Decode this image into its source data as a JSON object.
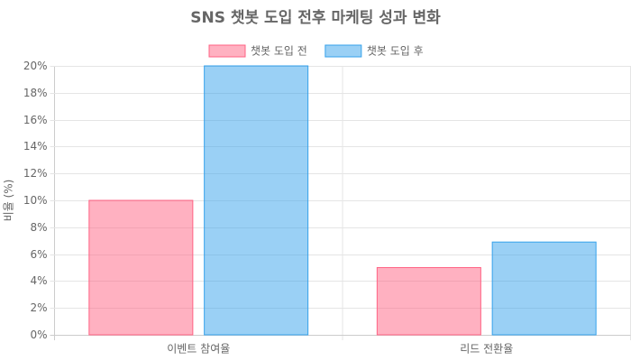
{
  "chart_data": {
    "type": "bar",
    "title": "SNS 챗봇 도입 전후 마케팅 성과 변화",
    "y_label": "비율 (%)",
    "categories": [
      "이벤트 참여율",
      "리드 전환율"
    ],
    "series": [
      {
        "name": "챗봇 도입 전",
        "color": "rgba(255, 99, 132, 0.5)",
        "border_color": "rgb(255, 99, 132)",
        "values": [
          10,
          5
        ]
      },
      {
        "name": "챗봇 도입 후",
        "color": "rgba(54, 162, 235, 0.5)",
        "border_color": "rgb(54, 162, 235)",
        "values": [
          20,
          6.9
        ]
      }
    ],
    "ylim": [
      0,
      20
    ],
    "yticks": [
      {
        "value": 0,
        "label": "0%"
      },
      {
        "value": 2,
        "label": "2%"
      },
      {
        "value": 4,
        "label": "4%"
      },
      {
        "value": 6,
        "label": "6%"
      },
      {
        "value": 8,
        "label": "8%"
      },
      {
        "value": 10,
        "label": "10%"
      },
      {
        "value": 12,
        "label": "12%"
      },
      {
        "value": 14,
        "label": "14%"
      },
      {
        "value": 16,
        "label": "16%"
      },
      {
        "value": 18,
        "label": "18%"
      },
      {
        "value": 20,
        "label": "20%"
      }
    ],
    "grid": true,
    "legend": "top"
  }
}
